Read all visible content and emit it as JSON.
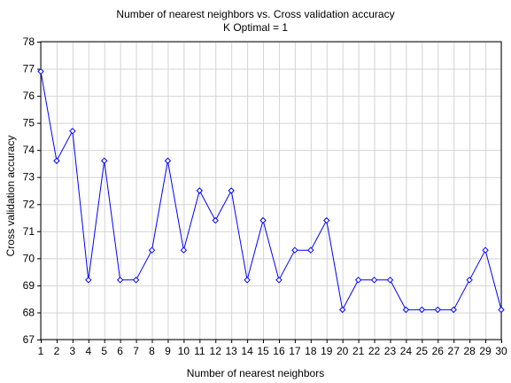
{
  "chart_data": {
    "type": "line",
    "title": "Number of nearest neighbors vs. Cross validation accuracy",
    "subtitle": "K Optimal = 1",
    "xlabel": "Number of nearest neighbors",
    "ylabel": "Cross validation accuracy",
    "xlim": [
      1,
      30
    ],
    "ylim": [
      67,
      78
    ],
    "x_ticks": [
      1,
      2,
      3,
      4,
      5,
      6,
      7,
      8,
      9,
      10,
      11,
      12,
      13,
      14,
      15,
      16,
      17,
      18,
      19,
      20,
      21,
      22,
      23,
      24,
      25,
      26,
      27,
      28,
      29,
      30
    ],
    "y_ticks": [
      67,
      68,
      69,
      70,
      71,
      72,
      73,
      74,
      75,
      76,
      77,
      78
    ],
    "grid": true,
    "x": [
      1,
      2,
      3,
      4,
      5,
      6,
      7,
      8,
      9,
      10,
      11,
      12,
      13,
      14,
      15,
      16,
      17,
      18,
      19,
      20,
      21,
      22,
      23,
      24,
      25,
      26,
      27,
      28,
      29,
      30
    ],
    "y": [
      76.9,
      73.6,
      74.7,
      69.2,
      73.6,
      69.2,
      69.2,
      70.3,
      73.6,
      70.3,
      72.5,
      71.4,
      72.5,
      69.2,
      71.4,
      69.2,
      70.3,
      70.3,
      71.4,
      68.1,
      69.2,
      69.2,
      69.2,
      68.1,
      68.1,
      68.1,
      68.1,
      69.2,
      70.3,
      68.1
    ],
    "line_color": "#0000ff",
    "grid_color": "#d4d4d4"
  }
}
